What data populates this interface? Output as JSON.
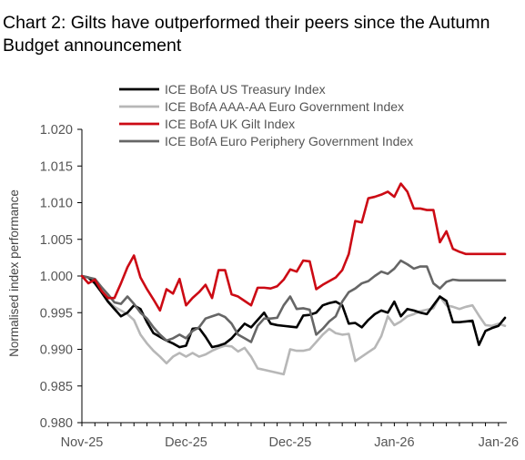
{
  "chart_data": {
    "type": "line",
    "title": "Chart 2: Gilts have outperformed their peers since the Autumn Budget announcement",
    "xlabel": "",
    "ylabel": "Normalised index performance",
    "ylim": [
      0.98,
      1.02
    ],
    "yticks": [
      "1.020",
      "1.015",
      "1.010",
      "1.005",
      "1.000",
      "0.995",
      "0.990",
      "0.985",
      "0.980"
    ],
    "xtick_labels": [
      "Nov-25",
      "Dec-25",
      "Dec-25",
      "Jan-26",
      "Jan-26"
    ],
    "xtick_index": [
      0,
      16,
      32,
      48,
      64
    ],
    "n_points": 66,
    "legend_position": "top",
    "grid": false,
    "series": [
      {
        "name": "ICE BofA US Treasury Index",
        "color": "#000000",
        "values": [
          1.0,
          0.9998,
          0.999,
          0.9978,
          0.9965,
          0.9955,
          0.9945,
          0.995,
          0.996,
          0.9955,
          0.9937,
          0.9922,
          0.9917,
          0.9912,
          0.9908,
          0.9903,
          0.9905,
          0.9928,
          0.9929,
          0.9917,
          0.9903,
          0.9905,
          0.9908,
          0.9915,
          0.9925,
          0.9935,
          0.993,
          0.994,
          0.995,
          0.9935,
          0.9933,
          0.9932,
          0.9931,
          0.993,
          0.9946,
          0.9947,
          0.995,
          0.996,
          0.9963,
          0.9965,
          0.996,
          0.9935,
          0.9936,
          0.993,
          0.994,
          0.9948,
          0.9953,
          0.995,
          0.9965,
          0.9945,
          0.9955,
          0.9953,
          0.995,
          0.9948,
          0.996,
          0.9972,
          0.9966,
          0.9937,
          0.9937,
          0.9938,
          0.9939,
          0.9906,
          0.9925,
          0.9929,
          0.9932,
          0.9943
        ]
      },
      {
        "name": "ICE BofA AAA-AA Euro Government Index",
        "color": "#b7b7b7",
        "values": [
          1.0,
          0.9998,
          0.999,
          0.998,
          0.9966,
          0.9958,
          0.9953,
          0.9948,
          0.994,
          0.992,
          0.9908,
          0.9898,
          0.989,
          0.9881,
          0.989,
          0.9895,
          0.989,
          0.9895,
          0.989,
          0.9893,
          0.9898,
          0.9902,
          0.9905,
          0.9904,
          0.9897,
          0.9902,
          0.989,
          0.9874,
          0.9872,
          0.987,
          0.9868,
          0.9866,
          0.99,
          0.9898,
          0.9898,
          0.99,
          0.991,
          0.992,
          0.9928,
          0.9922,
          0.992,
          0.9921,
          0.9884,
          0.989,
          0.9896,
          0.9902,
          0.9918,
          0.9945,
          0.9933,
          0.9938,
          0.9945,
          0.9948,
          0.9952,
          0.9954,
          0.9956,
          0.9972,
          0.996,
          0.9958,
          0.9955,
          0.9958,
          0.996,
          0.9946,
          0.9933,
          0.9932,
          0.9935,
          0.9932
        ]
      },
      {
        "name": "ICE BofA UK Gilt Index",
        "color": "#cc0a14",
        "values": [
          1.0,
          0.999,
          0.9995,
          0.998,
          0.997,
          0.997,
          0.999,
          1.0012,
          1.0028,
          0.9998,
          0.9982,
          0.9968,
          0.9953,
          0.9982,
          0.9976,
          0.9996,
          0.996,
          0.997,
          0.9978,
          0.9988,
          0.997,
          1.0008,
          1.0008,
          0.9975,
          0.9972,
          0.9966,
          0.996,
          0.9984,
          0.9984,
          0.9983,
          0.9986,
          0.9995,
          1.0009,
          1.0006,
          1.0021,
          1.002,
          0.9982,
          0.9988,
          0.9993,
          0.9998,
          1.0008,
          1.003,
          1.0075,
          1.0073,
          1.0106,
          1.0108,
          1.0111,
          1.0115,
          1.0108,
          1.0126,
          1.0115,
          1.0092,
          1.0092,
          1.009,
          1.009,
          1.0046,
          1.0061,
          1.0037,
          1.0033,
          1.003,
          1.003,
          1.003,
          1.003,
          1.003,
          1.003,
          1.003
        ]
      },
      {
        "name": "ICE BofA Euro Periphery Government Index",
        "color": "#666666",
        "values": [
          1.0,
          0.9998,
          0.9996,
          0.9985,
          0.9975,
          0.9964,
          0.9962,
          0.9972,
          0.9962,
          0.995,
          0.9942,
          0.993,
          0.992,
          0.9912,
          0.9915,
          0.992,
          0.9915,
          0.9925,
          0.993,
          0.9942,
          0.9945,
          0.9948,
          0.9944,
          0.9935,
          0.992,
          0.9915,
          0.991,
          0.9932,
          0.9942,
          0.9942,
          0.9943,
          0.996,
          0.9972,
          0.9955,
          0.9956,
          0.9954,
          0.992,
          0.9928,
          0.9938,
          0.9945,
          0.9965,
          0.9978,
          0.9983,
          0.999,
          0.9993,
          1.0,
          1.0006,
          1.0003,
          1.001,
          1.0021,
          1.0016,
          1.001,
          1.0013,
          1.0013,
          0.999,
          0.9983,
          0.9992,
          0.9995,
          0.9994,
          0.9994,
          0.9994,
          0.9994,
          0.9994,
          0.9994,
          0.9994,
          0.9994
        ]
      }
    ]
  }
}
